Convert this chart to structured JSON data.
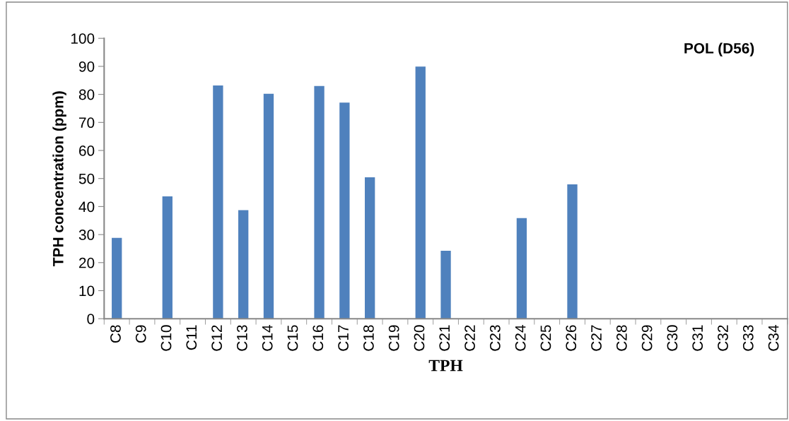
{
  "chart_data": {
    "type": "bar",
    "title": "POL (D56)",
    "xlabel": "TPH",
    "ylabel": "TPH concentration (ppm)",
    "categories": [
      "C8",
      "C9",
      "C10",
      "C11",
      "C12",
      "C13",
      "C14",
      "C15",
      "C16",
      "C17",
      "C18",
      "C19",
      "C20",
      "C21",
      "C22",
      "C23",
      "C24",
      "C25",
      "C26",
      "C27",
      "C28",
      "C29",
      "C30",
      "C31",
      "C32",
      "C33",
      "C34"
    ],
    "values": [
      28.8,
      0,
      43.6,
      0,
      83.2,
      38.7,
      80.2,
      0,
      83.0,
      77.1,
      50.4,
      0,
      89.9,
      24.2,
      0,
      0,
      35.9,
      0,
      47.9,
      0,
      0,
      0,
      0,
      0,
      0,
      0,
      0
    ],
    "color": "#4f81bd",
    "ylim": [
      0,
      100
    ],
    "yticks": [
      0,
      10,
      20,
      30,
      40,
      50,
      60,
      70,
      80,
      90,
      100
    ],
    "grid": false,
    "legend": false
  }
}
